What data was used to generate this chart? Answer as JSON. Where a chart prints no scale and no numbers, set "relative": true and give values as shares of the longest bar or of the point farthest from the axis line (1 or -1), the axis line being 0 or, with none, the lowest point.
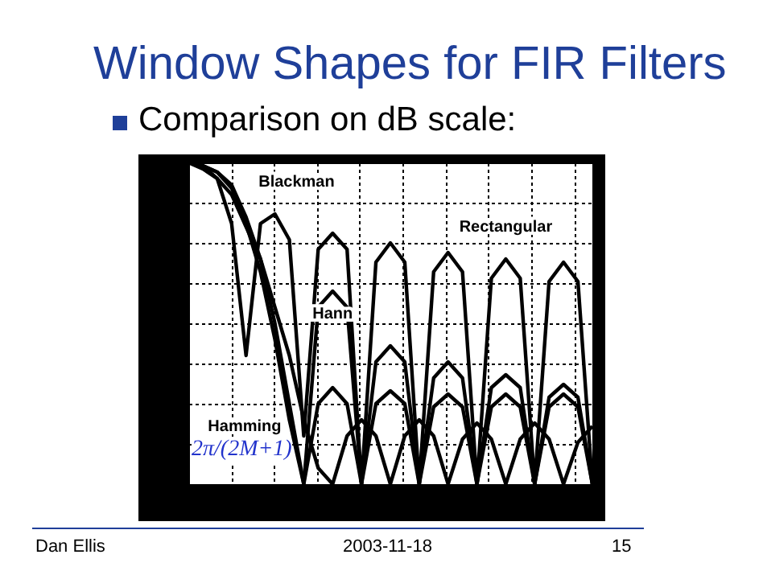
{
  "chart_data": {
    "type": "line",
    "title": "Window Shapes for FIR Filters",
    "subtitle": "Comparison on dB scale:",
    "relative": true,
    "grid": true,
    "marker": "none",
    "line_style": "solid",
    "categories": [
      null,
      null,
      null,
      null,
      null,
      null,
      null,
      null,
      null,
      null,
      null,
      null,
      null,
      null,
      null,
      null,
      null,
      null,
      null,
      null,
      null,
      null,
      null,
      null,
      null,
      null,
      null,
      null,
      null
    ],
    "series": [
      {
        "name": "Blackman",
        "color": "#000000",
        "values": [
          0,
          -0.02,
          -0.05,
          -0.1,
          -0.2,
          -0.3,
          -0.45,
          -0.6,
          -0.8,
          -0.95,
          -1,
          -0.85,
          -0.8,
          -0.85,
          -1,
          -0.85,
          -0.8,
          -0.85,
          -1,
          -0.86,
          -0.81,
          -0.86,
          -1,
          -0.86,
          -0.81,
          -0.86,
          -1,
          -0.87,
          -0.82
        ]
      },
      {
        "name": "Hann",
        "color": "#000000",
        "values": [
          0,
          -0.01,
          -0.03,
          -0.08,
          -0.19,
          -0.34,
          -0.55,
          -0.8,
          -1,
          -0.45,
          -0.4,
          -0.45,
          -1,
          -0.62,
          -0.57,
          -0.62,
          -1,
          -0.67,
          -0.62,
          -0.67,
          -1,
          -0.7,
          -0.66,
          -0.7,
          -1,
          -0.73,
          -0.69,
          -0.73,
          -1
        ]
      },
      {
        "name": "Rectangular",
        "color": "#000000",
        "values": [
          0,
          -0.01,
          -0.05,
          -0.19,
          -0.6,
          -0.19,
          -0.16,
          -0.24,
          -0.85,
          -0.27,
          -0.22,
          -0.27,
          -1,
          -0.31,
          -0.25,
          -0.31,
          -1,
          -0.34,
          -0.28,
          -0.34,
          -1,
          -0.36,
          -0.3,
          -0.36,
          -1,
          -0.37,
          -0.31,
          -0.37,
          -1
        ]
      },
      {
        "name": "Hamming",
        "color": "#000000",
        "values": [
          0,
          -0.01,
          -0.03,
          -0.07,
          -0.17,
          -0.3,
          -0.5,
          -0.75,
          -1,
          -0.75,
          -0.7,
          -0.75,
          -1,
          -0.75,
          -0.71,
          -0.75,
          -1,
          -0.76,
          -0.72,
          -0.76,
          -1,
          -0.76,
          -0.72,
          -0.76,
          -1,
          -0.76,
          -0.72,
          -0.76,
          -1
        ]
      }
    ],
    "annotations": [
      "2π/(2M+1)",
      "Dan Ellis",
      "2003-11-18",
      "15"
    ]
  }
}
